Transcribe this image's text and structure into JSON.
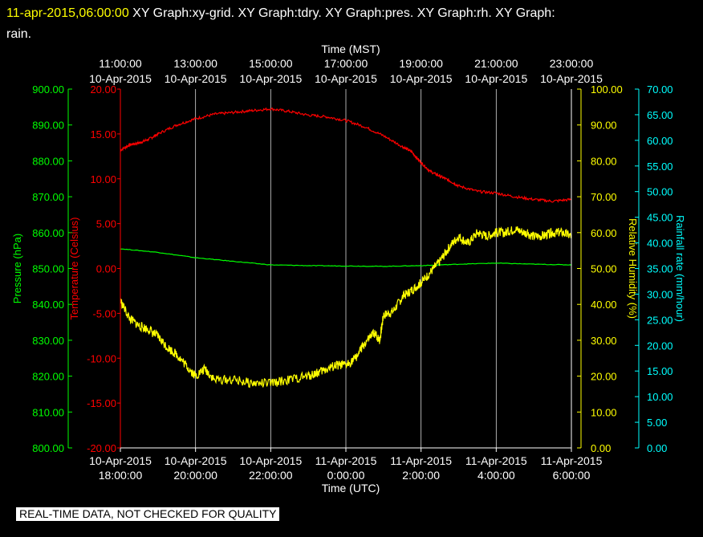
{
  "header": {
    "timestamp": "11-apr-2015,06:00:00",
    "graphs": "XY Graph:xy-grid.  XY Graph:tdry.  XY Graph:pres.  XY Graph:rh.  XY Graph:",
    "graphs_tail": "rain."
  },
  "footer": "REAL-TIME DATA, NOT CHECKED FOR QUALITY",
  "colors": {
    "temperature": "#ff0000",
    "pressure": "#00ff00",
    "humidity": "#ffff00",
    "rain": "#00ffff",
    "grid": "#ffffff"
  },
  "chart_data": {
    "type": "line",
    "top_axis": {
      "title": "Time (MST)",
      "ticks": [
        {
          "time": "11:00:00",
          "date": "10-Apr-2015"
        },
        {
          "time": "13:00:00",
          "date": "10-Apr-2015"
        },
        {
          "time": "15:00:00",
          "date": "10-Apr-2015"
        },
        {
          "time": "17:00:00",
          "date": "10-Apr-2015"
        },
        {
          "time": "19:00:00",
          "date": "10-Apr-2015"
        },
        {
          "time": "21:00:00",
          "date": "10-Apr-2015"
        },
        {
          "time": "23:00:00",
          "date": "10-Apr-2015"
        }
      ]
    },
    "bottom_axis": {
      "title": "Time (UTC)",
      "ticks": [
        {
          "date": "10-Apr-2015",
          "time": "18:00:00"
        },
        {
          "date": "10-Apr-2015",
          "time": "20:00:00"
        },
        {
          "date": "10-Apr-2015",
          "time": "22:00:00"
        },
        {
          "date": "11-Apr-2015",
          "time": "0:00:00"
        },
        {
          "date": "11-Apr-2015",
          "time": "2:00:00"
        },
        {
          "date": "11-Apr-2015",
          "time": "4:00:00"
        },
        {
          "date": "11-Apr-2015",
          "time": "6:00:00"
        }
      ]
    },
    "x_hours_range": [
      0,
      12
    ],
    "axes": {
      "pressure": {
        "label": "Pressure (hPa)",
        "range": [
          800,
          900
        ],
        "ticks": [
          "800.00",
          "810.00",
          "820.00",
          "830.00",
          "840.00",
          "850.00",
          "860.00",
          "870.00",
          "880.00",
          "890.00",
          "900.00"
        ]
      },
      "temperature": {
        "label": "Temperature (Celsius)",
        "range": [
          -20,
          20
        ],
        "ticks": [
          "-20.00",
          "-15.00",
          "-10.00",
          "-5.00",
          "0.00",
          "5.00",
          "10.00",
          "15.00",
          "20.00"
        ]
      },
      "humidity": {
        "label": "Relative Humidity (%)",
        "range": [
          0,
          100
        ],
        "ticks": [
          "0.00",
          "10.00",
          "20.00",
          "30.00",
          "40.00",
          "50.00",
          "60.00",
          "70.00",
          "80.00",
          "90.00",
          "100.00"
        ]
      },
      "rain": {
        "label": "Rainfall rate (mm/hour)",
        "range": [
          0,
          70
        ],
        "ticks": [
          "0.00",
          "5.00",
          "10.00",
          "15.00",
          "20.00",
          "25.00",
          "30.00",
          "35.00",
          "40.00",
          "45.00",
          "50.00",
          "55.00",
          "60.00",
          "65.00",
          "70.00"
        ]
      }
    },
    "series": [
      {
        "name": "tdry",
        "axis": "temperature",
        "x": [
          0,
          0.25,
          0.5,
          0.75,
          1,
          1.5,
          2,
          2.5,
          3,
          3.5,
          4,
          4.5,
          5,
          5.5,
          6,
          6.5,
          7,
          7.5,
          7.75,
          8,
          8.25,
          8.5,
          8.75,
          9,
          9.5,
          10,
          10.5,
          11,
          11.5,
          12
        ],
        "y": [
          13.2,
          13.8,
          14.0,
          14.4,
          15.0,
          16.0,
          16.7,
          17.2,
          17.4,
          17.6,
          17.8,
          17.5,
          17.1,
          16.9,
          16.5,
          15.8,
          14.8,
          13.6,
          13.0,
          11.8,
          10.8,
          10.3,
          9.8,
          9.2,
          8.6,
          8.4,
          8.0,
          7.7,
          7.5,
          7.7
        ]
      },
      {
        "name": "pres",
        "axis": "pressure",
        "x": [
          0,
          1,
          2,
          3,
          4,
          5,
          6,
          7,
          8,
          9,
          10,
          11,
          12
        ],
        "y": [
          855.5,
          854.5,
          853.0,
          852.0,
          851.0,
          850.8,
          850.7,
          850.6,
          850.8,
          851.2,
          851.5,
          851.2,
          851.0
        ]
      },
      {
        "name": "rh",
        "axis": "humidity",
        "x": [
          0,
          0.25,
          0.5,
          0.75,
          1,
          1.25,
          1.5,
          1.75,
          2,
          2.25,
          2.5,
          3,
          3.5,
          4,
          4.5,
          5,
          5.25,
          5.5,
          5.75,
          6,
          6.25,
          6.5,
          6.75,
          6.9,
          7,
          7.25,
          7.5,
          7.75,
          8,
          8.25,
          8.5,
          8.75,
          9,
          9.25,
          9.5,
          9.75,
          10,
          10.25,
          10.5,
          10.75,
          11,
          11.25,
          11.5,
          11.75,
          12
        ],
        "y": [
          41,
          36,
          34,
          33,
          31,
          28,
          26,
          23,
          20,
          22,
          19,
          19,
          18,
          18,
          19,
          20,
          21,
          22,
          23,
          23,
          25,
          29,
          32,
          30,
          37,
          38,
          42,
          44,
          46,
          49,
          52,
          56,
          59,
          57,
          60,
          59,
          60,
          60,
          61,
          60,
          59,
          59,
          60,
          60,
          59
        ]
      },
      {
        "name": "rain",
        "axis": "rain",
        "x": [
          0,
          12
        ],
        "y": [
          0,
          0
        ]
      }
    ],
    "grid": true
  }
}
